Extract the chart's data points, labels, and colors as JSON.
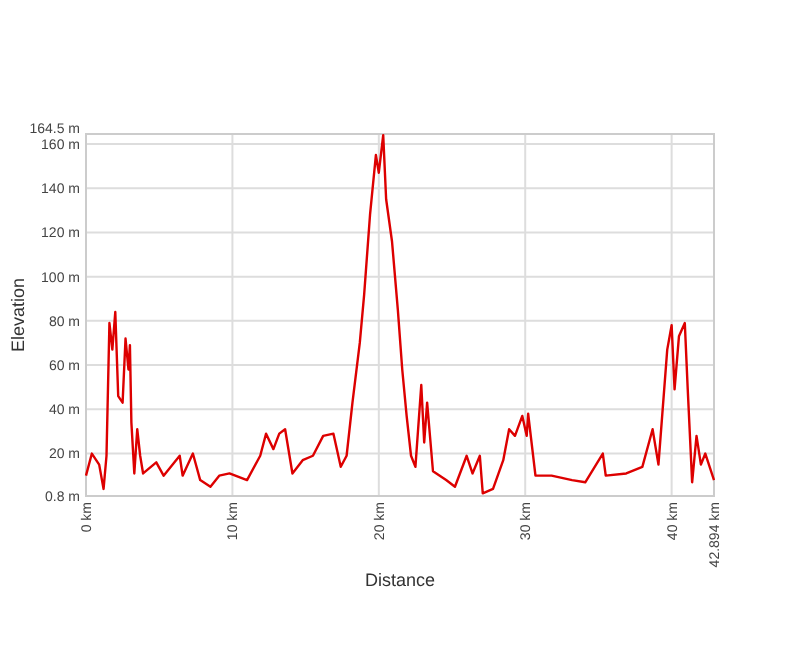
{
  "chart_data": {
    "type": "line",
    "xlabel": "Distance",
    "ylabel": "Elevation",
    "x": [
      0,
      0.4,
      0.9,
      1.2,
      1.4,
      1.6,
      1.8,
      2.0,
      2.2,
      2.5,
      2.7,
      2.9,
      3.0,
      3.1,
      3.3,
      3.5,
      3.7,
      3.9,
      4.8,
      5.3,
      6.4,
      6.6,
      7.3,
      7.8,
      8.5,
      9.1,
      9.8,
      11.0,
      11.9,
      12.3,
      12.8,
      13.2,
      13.6,
      14.1,
      14.8,
      15.5,
      16.2,
      16.9,
      17.4,
      17.8,
      18.2,
      18.7,
      19.0,
      19.4,
      19.8,
      20.0,
      20.3,
      20.5,
      20.9,
      21.3,
      21.6,
      21.9,
      22.2,
      22.5,
      22.9,
      23.1,
      23.3,
      23.7,
      24.6,
      25.2,
      26.0,
      26.4,
      26.9,
      27.1,
      27.8,
      28.5,
      28.9,
      29.3,
      29.8,
      30.1,
      30.2,
      30.7,
      31.8,
      33.2,
      34.1,
      35.3,
      35.5,
      36.9,
      38.0,
      38.7,
      39.1,
      39.7,
      40.0,
      40.2,
      40.5,
      40.9,
      41.1,
      41.4,
      41.7,
      42.0,
      42.3,
      42.894
    ],
    "series": [
      {
        "color": "#dd0000",
        "values": [
          10,
          20,
          15,
          4,
          19,
          79,
          67,
          84,
          46,
          43,
          72,
          58,
          69,
          34,
          11,
          31,
          19,
          11,
          16,
          10,
          19,
          10,
          20,
          8,
          5,
          10,
          11,
          8,
          19,
          29,
          22,
          29,
          31,
          11,
          17,
          19,
          28,
          29,
          14,
          19,
          43,
          70,
          92,
          128,
          155,
          147,
          164,
          135,
          116,
          85,
          58,
          37,
          19,
          14,
          51,
          25,
          43,
          12,
          8,
          5,
          19,
          11,
          19,
          2,
          4,
          17,
          31,
          28,
          37,
          28,
          38,
          10,
          10,
          8,
          7,
          20,
          10,
          11,
          14,
          31,
          15,
          67,
          78,
          49,
          73,
          79,
          49,
          7,
          28,
          15,
          20,
          8
        ]
      }
    ],
    "xlim": [
      0,
      42.894
    ],
    "ylim": [
      0.8,
      164.5
    ],
    "xticks": [
      {
        "value": 0,
        "label": "0 km"
      },
      {
        "value": 10,
        "label": "10 km"
      },
      {
        "value": 20,
        "label": "20 km"
      },
      {
        "value": 30,
        "label": "30 km"
      },
      {
        "value": 40,
        "label": "40 km"
      },
      {
        "value": 42.894,
        "label": "42.894 km"
      }
    ],
    "yticks": [
      {
        "value": 0.8,
        "label": "0.8 m"
      },
      {
        "value": 20,
        "label": "20 m"
      },
      {
        "value": 40,
        "label": "40 m"
      },
      {
        "value": 60,
        "label": "60 m"
      },
      {
        "value": 80,
        "label": "80 m"
      },
      {
        "value": 100,
        "label": "100 m"
      },
      {
        "value": 120,
        "label": "120 m"
      },
      {
        "value": 140,
        "label": "140 m"
      },
      {
        "value": 160,
        "label": "160 m"
      },
      {
        "value": 164.5,
        "label": "164.5 m"
      }
    ],
    "grid": true,
    "marker": "none",
    "line_style": "solid"
  }
}
